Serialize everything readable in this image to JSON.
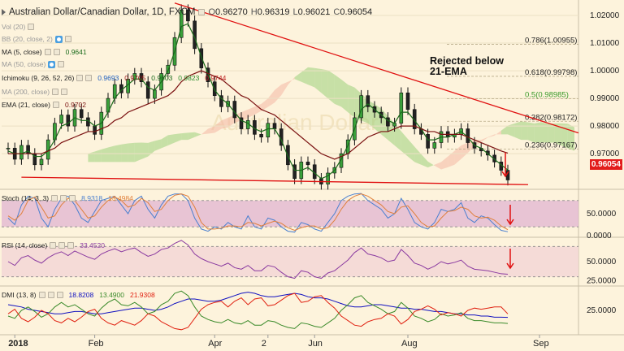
{
  "title": {
    "symbol": "Australian Dollar/Canadian Dollar, 1D, FXCM",
    "open_label": "O",
    "open": "0.96270",
    "high_label": "H",
    "high": "0.96319",
    "low_label": "L",
    "low": "0.96021",
    "close_label": "C",
    "close": "0.96054"
  },
  "legends": {
    "vol": "Vol (20)",
    "bb": "BB (20, close, 2)",
    "ma5": "MA (5, close)",
    "ma5_value": "0.9641",
    "ma50": "MA (50, close)",
    "ichimoku": "Ichimoku (9, 26, 52, 26)",
    "ichimoku_values": [
      "0.9693",
      "0.9705",
      "0.9603",
      "0.9823",
      "0.9744"
    ],
    "ma200": "MA (200, close)",
    "ema21": "EMA (21, close)",
    "ema21_value": "0.9702",
    "stoch": "Stoch (14, 3, 3)",
    "stoch_k": "8.9318",
    "stoch_d": "13.4984",
    "rsi": "RSI (14, close)",
    "rsi_value": "33.4520",
    "dmi": "DMI (13, 8)",
    "dmi_adx": "18.8208",
    "dmi_plus": "13.4900",
    "dmi_minus": "21.9308"
  },
  "annotation": {
    "line1": "Rejected below",
    "line2": "21-EMA"
  },
  "current_price": "0.96054",
  "colors": {
    "background": "#fdf3dc",
    "price_line": "#111111",
    "ma5": "#1a6a1a",
    "ema21": "#7a1010",
    "trendline": "#e01010",
    "cloud_bull": "#9bcf7a",
    "cloud_bear": "#f4b7a4",
    "stoch_k": "#4a7fd0",
    "stoch_d": "#e0803c",
    "stoch_band": "#e2b8d2",
    "rsi_line": "#8a3aa0",
    "rsi_band": "#f3d4d6",
    "dmi_adx": "#1010c0",
    "dmi_plus": "#3a8a2a",
    "dmi_minus": "#e02010",
    "price_tag": "#e21c1c"
  },
  "chart_data": [
    {
      "type": "line",
      "panel": "price",
      "x_labels": [
        "2018",
        "Feb",
        "Apr",
        "2",
        "Jun",
        "Aug",
        "Sep"
      ],
      "y_ticks": [
        "1.02000",
        "1.01000",
        "1.00000",
        "0.99000",
        "0.98000",
        "0.97000"
      ],
      "ylim": [
        0.958,
        1.025
      ],
      "series": [
        {
          "values": [
            0.972,
            0.968,
            0.973,
            0.97,
            0.966,
            0.968,
            0.975,
            0.981,
            0.984,
            0.98,
            0.986,
            0.983,
            0.98,
            0.977,
            0.985,
            0.99,
            0.995,
            0.992,
            0.997,
            0.999,
            0.996,
            0.99,
            0.993,
            0.999,
            1.002,
            1.012,
            1.022,
            1.018,
            1.008,
            1.001,
            0.996,
            0.991,
            0.987,
            0.989,
            0.983,
            0.979,
            0.982,
            0.977,
            0.976,
            0.981,
            0.979,
            0.973,
            0.966,
            0.961,
            0.967,
            0.966,
            0.961,
            0.959,
            0.963,
            0.965,
            0.97,
            0.975,
            0.983,
            0.991,
            0.987,
            0.985,
            0.983,
            0.98,
            0.981,
            0.992,
            0.986,
            0.979,
            0.977,
            0.972,
            0.974,
            0.978,
            0.976,
            0.977,
            0.979,
            0.974,
            0.972,
            0.971,
            0.9695,
            0.967,
            0.964,
            0.9605
          ]
        },
        {
          "name": "MA (5, close)",
          "values": [
            0.971,
            0.97,
            0.97,
            0.971,
            0.969,
            0.969,
            0.971,
            0.975,
            0.98,
            0.981,
            0.983,
            0.982,
            0.982,
            0.98,
            0.981,
            0.985,
            0.99,
            0.993,
            0.995,
            0.997,
            0.997,
            0.994,
            0.993,
            0.996,
            1.0,
            1.007,
            1.016,
            1.017,
            1.012,
            1.005,
            0.999,
            0.993,
            0.99,
            0.988,
            0.985,
            0.982,
            0.981,
            0.979,
            0.978,
            0.979,
            0.979,
            0.975,
            0.969,
            0.964,
            0.964,
            0.965,
            0.963,
            0.961,
            0.962,
            0.964,
            0.968,
            0.973,
            0.979,
            0.986,
            0.988,
            0.986,
            0.984,
            0.982,
            0.981,
            0.985,
            0.985,
            0.982,
            0.979,
            0.975,
            0.975,
            0.976,
            0.976,
            0.977,
            0.978,
            0.976,
            0.973,
            0.972,
            0.97,
            0.968,
            0.966,
            0.9641
          ]
        },
        {
          "name": "EMA (21, close)",
          "values": [
            0.97,
            0.97,
            0.97,
            0.97,
            0.97,
            0.97,
            0.971,
            0.972,
            0.974,
            0.975,
            0.976,
            0.977,
            0.978,
            0.978,
            0.979,
            0.98,
            0.982,
            0.983,
            0.985,
            0.986,
            0.987,
            0.988,
            0.989,
            0.99,
            0.991,
            0.993,
            0.996,
            0.998,
            0.999,
            1.0,
            0.999,
            0.998,
            0.997,
            0.995,
            0.993,
            0.991,
            0.99,
            0.988,
            0.986,
            0.985,
            0.984,
            0.982,
            0.98,
            0.978,
            0.976,
            0.974,
            0.972,
            0.97,
            0.969,
            0.968,
            0.969,
            0.97,
            0.972,
            0.974,
            0.976,
            0.977,
            0.978,
            0.978,
            0.979,
            0.98,
            0.98,
            0.98,
            0.979,
            0.978,
            0.978,
            0.977,
            0.977,
            0.977,
            0.977,
            0.976,
            0.975,
            0.974,
            0.973,
            0.972,
            0.971,
            0.9702
          ]
        }
      ],
      "fib_levels": [
        {
          "label": "0.786(1.00955)",
          "value": 1.00955
        },
        {
          "label": "0.618(0.99798)",
          "value": 0.99798
        },
        {
          "label": "0.5(0.98985)",
          "value": 0.98985
        },
        {
          "label": "0.382(0.98172)",
          "value": 0.98172
        },
        {
          "label": "0.236(0.97167)",
          "value": 0.97167
        }
      ]
    },
    {
      "type": "line",
      "panel": "stochastic",
      "y_ticks": [
        "50.0000",
        "0.0000"
      ],
      "ylim": [
        0,
        100
      ],
      "series": [
        {
          "name": "%K",
          "values": [
            40,
            25,
            70,
            90,
            85,
            40,
            20,
            60,
            85,
            90,
            70,
            40,
            30,
            55,
            80,
            85,
            90,
            70,
            50,
            80,
            90,
            60,
            40,
            70,
            90,
            95,
            95,
            80,
            40,
            15,
            10,
            20,
            15,
            30,
            20,
            15,
            45,
            20,
            15,
            40,
            35,
            20,
            10,
            8,
            30,
            25,
            15,
            10,
            30,
            50,
            80,
            90,
            95,
            96,
            80,
            70,
            60,
            40,
            50,
            85,
            60,
            30,
            20,
            15,
            30,
            60,
            55,
            60,
            75,
            40,
            30,
            45,
            40,
            25,
            12,
            8.9
          ]
        },
        {
          "name": "%D",
          "values": [
            45,
            35,
            50,
            80,
            88,
            65,
            40,
            45,
            70,
            85,
            80,
            60,
            40,
            45,
            65,
            80,
            88,
            80,
            65,
            70,
            85,
            75,
            55,
            60,
            80,
            92,
            95,
            90,
            65,
            30,
            15,
            15,
            17,
            22,
            22,
            20,
            30,
            28,
            22,
            28,
            33,
            28,
            18,
            12,
            18,
            22,
            22,
            15,
            18,
            35,
            60,
            80,
            90,
            95,
            90,
            80,
            70,
            55,
            50,
            65,
            68,
            50,
            30,
            20,
            22,
            40,
            55,
            57,
            65,
            60,
            45,
            40,
            42,
            35,
            22,
            13.5
          ]
        }
      ]
    },
    {
      "type": "line",
      "panel": "rsi",
      "y_ticks": [
        "50.0000",
        "25.0000"
      ],
      "ylim": [
        20,
        80
      ],
      "series": [
        {
          "name": "RSI (14, close)",
          "values": [
            50,
            45,
            55,
            58,
            52,
            48,
            55,
            60,
            63,
            58,
            64,
            60,
            56,
            53,
            60,
            64,
            67,
            63,
            66,
            68,
            62,
            57,
            60,
            66,
            68,
            74,
            78,
            72,
            60,
            54,
            50,
            47,
            44,
            48,
            42,
            40,
            45,
            38,
            38,
            45,
            43,
            36,
            30,
            28,
            38,
            36,
            30,
            28,
            35,
            38,
            45,
            52,
            62,
            68,
            60,
            58,
            55,
            50,
            52,
            66,
            58,
            48,
            45,
            40,
            44,
            50,
            47,
            49,
            52,
            44,
            40,
            39,
            38,
            36,
            34,
            33.45
          ]
        }
      ]
    },
    {
      "type": "line",
      "panel": "dmi",
      "y_ticks": [
        "25.0000"
      ],
      "ylim": [
        5,
        45
      ],
      "series": [
        {
          "name": "ADX",
          "values": [
            30,
            29,
            28,
            26,
            25,
            24,
            23,
            22,
            22,
            23,
            24,
            24,
            23,
            22,
            22,
            23,
            24,
            25,
            26,
            27,
            27,
            26,
            25,
            26,
            28,
            31,
            33,
            35,
            35,
            34,
            33,
            33,
            34,
            36,
            38,
            40,
            41,
            40,
            38,
            37,
            37,
            38,
            39,
            40,
            39,
            37,
            36,
            36,
            35,
            33,
            31,
            29,
            28,
            28,
            29,
            30,
            30,
            29,
            28,
            27,
            27,
            26,
            26,
            25,
            24,
            24,
            23,
            22,
            22,
            21,
            21,
            20,
            20,
            19,
            19,
            18.82
          ]
        },
        {
          "name": "+DI",
          "values": [
            20,
            18,
            25,
            28,
            24,
            19,
            22,
            28,
            32,
            28,
            30,
            26,
            22,
            20,
            27,
            32,
            35,
            30,
            29,
            32,
            28,
            22,
            24,
            30,
            33,
            40,
            42,
            38,
            28,
            20,
            17,
            15,
            14,
            17,
            14,
            13,
            16,
            12,
            12,
            16,
            15,
            12,
            10,
            9,
            14,
            13,
            11,
            10,
            14,
            18,
            25,
            30,
            36,
            38,
            32,
            29,
            26,
            22,
            24,
            32,
            27,
            20,
            18,
            15,
            17,
            22,
            20,
            21,
            23,
            18,
            16,
            16,
            15,
            14,
            14,
            13.49
          ]
        },
        {
          "name": "-DI",
          "values": [
            22,
            26,
            18,
            15,
            19,
            25,
            22,
            16,
            14,
            18,
            15,
            19,
            24,
            26,
            18,
            14,
            12,
            16,
            14,
            12,
            16,
            22,
            20,
            15,
            12,
            9,
            8,
            10,
            18,
            26,
            30,
            32,
            33,
            28,
            33,
            36,
            30,
            35,
            36,
            29,
            30,
            34,
            38,
            40,
            32,
            33,
            37,
            38,
            32,
            27,
            20,
            16,
            12,
            11,
            15,
            17,
            18,
            22,
            20,
            13,
            17,
            24,
            26,
            29,
            26,
            21,
            23,
            22,
            20,
            25,
            27,
            26,
            27,
            28,
            28,
            21.93
          ]
        }
      ]
    }
  ]
}
